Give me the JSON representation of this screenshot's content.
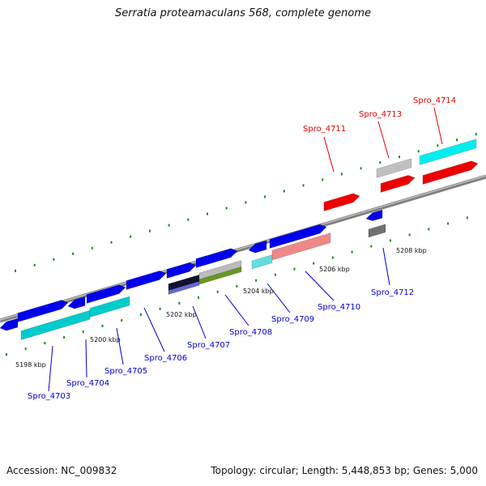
{
  "title": "Serratia proteamaculans 568, complete genome",
  "footer": {
    "accession": "Accession: NC_009832",
    "topology": "Topology: circular; Length: 5,448,853 bp; Genes: 5,000"
  },
  "scale_labels": [
    "5198 kbp",
    "5200 kbp",
    "5202 kbp",
    "5204 kbp",
    "5206 kbp",
    "5208 kbp"
  ],
  "genes_labeled": [
    {
      "name": "Spro_4703",
      "color": "#0000cc"
    },
    {
      "name": "Spro_4704",
      "color": "#0000cc"
    },
    {
      "name": "Spro_4705",
      "color": "#0000cc"
    },
    {
      "name": "Spro_4706",
      "color": "#0000cc"
    },
    {
      "name": "Spro_4707",
      "color": "#0000cc"
    },
    {
      "name": "Spro_4708",
      "color": "#0000cc"
    },
    {
      "name": "Spro_4709",
      "color": "#0000cc"
    },
    {
      "name": "Spro_4710",
      "color": "#0000cc"
    },
    {
      "name": "Spro_4711",
      "color": "#dd0000"
    },
    {
      "name": "Spro_4712",
      "color": "#0000cc"
    },
    {
      "name": "Spro_4713",
      "color": "#dd0000"
    },
    {
      "name": "Spro_4714",
      "color": "#dd0000"
    }
  ]
}
